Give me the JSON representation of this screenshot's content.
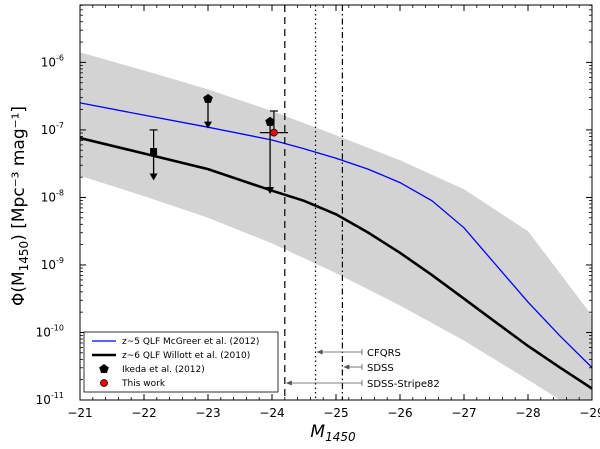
{
  "chart_data": {
    "type": "line",
    "title": "",
    "xlabel": "M",
    "xlabel_sub": "1450",
    "ylabel": "Φ(M",
    "ylabel_sub": "1450",
    "ylabel_units": ") [Mpc⁻³ mag⁻¹]",
    "xlim": [
      -21,
      -29
    ],
    "ylim_log10": [
      -11,
      -5.15
    ],
    "x_ticks": [
      -21,
      -22,
      -23,
      -24,
      -25,
      -26,
      -27,
      -28,
      -29
    ],
    "x_tick_labels": [
      "−21",
      "−22",
      "−23",
      "−24",
      "−25",
      "−26",
      "−27",
      "−28",
      "−29"
    ],
    "y_ticks_log10": [
      -11,
      -10,
      -9,
      -8,
      -7,
      -6
    ],
    "y_tick_labels": [
      {
        "base": "10",
        "exp": "-11"
      },
      {
        "base": "10",
        "exp": "-10"
      },
      {
        "base": "10",
        "exp": "-9"
      },
      {
        "base": "10",
        "exp": "-8"
      },
      {
        "base": "10",
        "exp": "-7"
      },
      {
        "base": "10",
        "exp": "-6"
      }
    ],
    "series": [
      {
        "name": "z~5 QLF McGreer et al. (2012)",
        "color": "#0000ff",
        "x": [
          -21,
          -22,
          -23,
          -24,
          -24.5,
          -25,
          -25.5,
          -26,
          -26.5,
          -27,
          -27.5,
          -28,
          -28.5,
          -29
        ],
        "log10_phi": [
          -6.6,
          -6.78,
          -6.96,
          -7.15,
          -7.28,
          -7.42,
          -7.58,
          -7.78,
          -8.05,
          -8.45,
          -9.0,
          -9.55,
          -10.05,
          -10.52
        ]
      },
      {
        "name": "z~6 QLF Willott et al. (2010)",
        "color": "#000000",
        "x": [
          -21,
          -22,
          -23,
          -24,
          -24.5,
          -25,
          -25.5,
          -26,
          -26.5,
          -27,
          -27.5,
          -28,
          -28.5,
          -29
        ],
        "log10_phi": [
          -7.12,
          -7.35,
          -7.58,
          -7.9,
          -8.05,
          -8.25,
          -8.52,
          -8.82,
          -9.15,
          -9.5,
          -9.85,
          -10.2,
          -10.52,
          -10.83
        ]
      }
    ],
    "shaded_band": {
      "color": "#d3d3d3",
      "x": [
        -21,
        -22,
        -23,
        -24,
        -25,
        -26,
        -27,
        -28,
        -29
      ],
      "upper_log10": [
        -5.85,
        -6.12,
        -6.4,
        -6.72,
        -7.08,
        -7.45,
        -7.88,
        -8.5,
        -9.75
      ],
      "lower_log10": [
        -7.68,
        -7.98,
        -8.3,
        -8.68,
        -9.12,
        -9.6,
        -10.12,
        -10.7,
        -11.3
      ]
    },
    "points": [
      {
        "label": "Ikeda et al. (2012)",
        "marker": "square",
        "x": -22.15,
        "log10_phi": -7.32,
        "err_upper_log10": -7.0,
        "upper_limit_arrow_to_log10": -7.75,
        "xerr": 0
      },
      {
        "label": "Ikeda et al. (2012)",
        "marker": "pentagon",
        "x": -23.0,
        "log10_phi": -6.54,
        "upper_limit_arrow_to_log10": -6.98,
        "xerr": 0
      },
      {
        "label": "Ikeda et al. (2012)",
        "marker": "pentagon",
        "x": -23.97,
        "log10_phi": -6.88,
        "upper_limit_arrow_to_log10": -7.95,
        "xerr": 0
      },
      {
        "label": "This work",
        "marker": "circle",
        "color": "#ff0000",
        "x": -24.03,
        "log10_phi": -7.04,
        "err_upper_log10": -6.72,
        "xerr": 0.22
      }
    ],
    "survey_limits": [
      {
        "name": "CFQRS",
        "x": -24.68,
        "style": "dotted"
      },
      {
        "name": "SDSS",
        "x": -25.1,
        "style": "dashdot"
      },
      {
        "name": "SDSS-Stripe82",
        "x": -24.2,
        "style": "dashed"
      }
    ],
    "legend": {
      "position": "lower-left",
      "entries": [
        {
          "label": "z~5 QLF McGreer et al. (2012)",
          "kind": "line",
          "color": "#0000ff"
        },
        {
          "label": "z~6 QLF Willott et al. (2010)",
          "kind": "thick-line",
          "color": "#000000"
        },
        {
          "label": "Ikeda et al. (2012)",
          "kind": "pentagon",
          "color": "#000000"
        },
        {
          "label": "This work",
          "kind": "circle",
          "color": "#ff0000"
        }
      ]
    },
    "grid": false
  }
}
